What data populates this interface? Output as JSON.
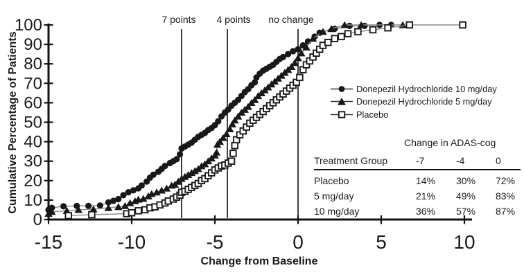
{
  "page": {
    "background": "#ffffff"
  },
  "colors": {
    "ink": "#181818",
    "axis": "#111111",
    "series_line": "#8c8c8c",
    "ref_line": "#2b2b2b",
    "marker_fill": "#181818",
    "open_marker_fill": "#ffffff"
  },
  "chart_data": {
    "type": "line",
    "title": "",
    "xlabel": "Change from Baseline",
    "ylabel": "Cumulative Percentage of Patients",
    "xlim": [
      -15,
      10
    ],
    "ylim": [
      0,
      100
    ],
    "x_ticks": [
      -15,
      -10,
      -5,
      0,
      5,
      10
    ],
    "y_ticks": [
      0,
      10,
      20,
      30,
      40,
      50,
      60,
      70,
      80,
      90,
      100
    ],
    "grid": false,
    "legend_position": "right-middle",
    "ref_lines": [
      {
        "label": "7 points",
        "x": -7
      },
      {
        "label": "4 points",
        "x": -4.25
      },
      {
        "label": "no change",
        "x": 0
      }
    ],
    "series": [
      {
        "name": "Donepezil Hydrochloride 10 mg/day",
        "marker": "filled-circle",
        "points": [
          [
            -15,
            5
          ],
          [
            -14.8,
            6
          ],
          [
            -14.1,
            6.8
          ],
          [
            -13.3,
            7
          ],
          [
            -12.6,
            7
          ],
          [
            -11.9,
            7.2
          ],
          [
            -11.4,
            8.8
          ],
          [
            -11.1,
            9.6
          ],
          [
            -10.8,
            10.5
          ],
          [
            -10.5,
            12.5
          ],
          [
            -10.2,
            14
          ],
          [
            -9.9,
            15
          ],
          [
            -9.6,
            16
          ],
          [
            -9.4,
            17.5
          ],
          [
            -9.1,
            19.5
          ],
          [
            -8.9,
            21.5
          ],
          [
            -8.7,
            23
          ],
          [
            -8.4,
            24.5
          ],
          [
            -8.2,
            26
          ],
          [
            -8,
            27.5
          ],
          [
            -7.7,
            29
          ],
          [
            -7.5,
            30
          ],
          [
            -7.3,
            31
          ],
          [
            -7.1,
            33.5
          ],
          [
            -7,
            36.5
          ],
          [
            -6.8,
            37.5
          ],
          [
            -6.6,
            38.5
          ],
          [
            -6.4,
            39.5
          ],
          [
            -6.2,
            41
          ],
          [
            -6,
            42.5
          ],
          [
            -5.8,
            43.5
          ],
          [
            -5.6,
            44.5
          ],
          [
            -5.4,
            46
          ],
          [
            -5.2,
            47
          ],
          [
            -5,
            48.5
          ],
          [
            -4.8,
            50.5
          ],
          [
            -4.6,
            53
          ],
          [
            -4.4,
            55
          ],
          [
            -4.2,
            56.5
          ],
          [
            -4,
            58.5
          ],
          [
            -3.8,
            60
          ],
          [
            -3.6,
            61.5
          ],
          [
            -3.4,
            63.5
          ],
          [
            -3.2,
            65.5
          ],
          [
            -3,
            67
          ],
          [
            -2.8,
            69
          ],
          [
            -2.6,
            70.5
          ],
          [
            -2.5,
            73
          ],
          [
            -2.3,
            75
          ],
          [
            -2.1,
            76.5
          ],
          [
            -1.9,
            77.5
          ],
          [
            -1.7,
            78.5
          ],
          [
            -1.5,
            79.5
          ],
          [
            -1.3,
            81
          ],
          [
            -1.1,
            82.5
          ],
          [
            -0.9,
            83.5
          ],
          [
            -0.6,
            85
          ],
          [
            -0.3,
            86.5
          ],
          [
            0,
            87.5
          ],
          [
            0.3,
            89.5
          ],
          [
            0.6,
            91.5
          ],
          [
            1,
            94
          ],
          [
            1.3,
            96
          ],
          [
            2.2,
            98
          ],
          [
            3.1,
            99.5
          ],
          [
            4,
            99.5
          ],
          [
            4.9,
            100
          ],
          [
            5.6,
            100
          ]
        ]
      },
      {
        "name": "Donepezil Hydrochloride 5 mg/day",
        "marker": "filled-triangle",
        "points": [
          [
            -15,
            3
          ],
          [
            -14.8,
            4
          ],
          [
            -13.9,
            4.5
          ],
          [
            -13.2,
            5
          ],
          [
            -12.3,
            5.3
          ],
          [
            -11.4,
            6
          ],
          [
            -10.8,
            6.5
          ],
          [
            -10.4,
            7
          ],
          [
            -10.1,
            8.5
          ],
          [
            -9.8,
            9.5
          ],
          [
            -9.6,
            10.3
          ],
          [
            -9.3,
            10.7
          ],
          [
            -9,
            12
          ],
          [
            -8.8,
            13.2
          ],
          [
            -8.5,
            14
          ],
          [
            -8.2,
            15
          ],
          [
            -7.9,
            16
          ],
          [
            -7.6,
            17.5
          ],
          [
            -7.4,
            18
          ],
          [
            -7.2,
            19.5
          ],
          [
            -7,
            21
          ],
          [
            -6.8,
            22
          ],
          [
            -6.6,
            23
          ],
          [
            -6.4,
            24
          ],
          [
            -6.2,
            25
          ],
          [
            -6,
            26
          ],
          [
            -5.8,
            27.5
          ],
          [
            -5.6,
            28.5
          ],
          [
            -5.4,
            30
          ],
          [
            -5.2,
            31.5
          ],
          [
            -5,
            33
          ],
          [
            -4.9,
            34.5
          ],
          [
            -4.85,
            38.5
          ],
          [
            -4.7,
            40
          ],
          [
            -4.5,
            42
          ],
          [
            -4.3,
            44
          ],
          [
            -4.1,
            46.5
          ],
          [
            -3.95,
            49
          ],
          [
            -3.8,
            51
          ],
          [
            -3.6,
            53
          ],
          [
            -3.4,
            55
          ],
          [
            -3.2,
            56.5
          ],
          [
            -3,
            58
          ],
          [
            -2.8,
            60
          ],
          [
            -2.6,
            61.5
          ],
          [
            -2.4,
            63.5
          ],
          [
            -2.2,
            65
          ],
          [
            -2,
            66.5
          ],
          [
            -1.8,
            68
          ],
          [
            -1.6,
            69.5
          ],
          [
            -1.4,
            71
          ],
          [
            -1.2,
            72.5
          ],
          [
            -1,
            74
          ],
          [
            -0.8,
            75.5
          ],
          [
            -0.6,
            77
          ],
          [
            -0.4,
            78.5
          ],
          [
            -0.2,
            80.5
          ],
          [
            0,
            83
          ],
          [
            0.2,
            85.5
          ],
          [
            0.5,
            88.5
          ],
          [
            0.9,
            93
          ],
          [
            1.5,
            96.5
          ],
          [
            2,
            98
          ],
          [
            2.8,
            100
          ],
          [
            3.8,
            100
          ],
          [
            6.3,
            100
          ]
        ]
      },
      {
        "name": "Placebo",
        "marker": "open-square",
        "points": [
          [
            -13.8,
            2
          ],
          [
            -12.4,
            2.5
          ],
          [
            -10.3,
            3
          ],
          [
            -10,
            3.5
          ],
          [
            -9.6,
            4.5
          ],
          [
            -9.2,
            5
          ],
          [
            -8.9,
            6
          ],
          [
            -8.6,
            6.5
          ],
          [
            -8.3,
            7.5
          ],
          [
            -8,
            8.5
          ],
          [
            -7.8,
            9.5
          ],
          [
            -7.5,
            10.5
          ],
          [
            -7.3,
            11.5
          ],
          [
            -7.1,
            12.5
          ],
          [
            -7,
            14
          ],
          [
            -6.8,
            14.5
          ],
          [
            -6.6,
            15.5
          ],
          [
            -6.4,
            16.5
          ],
          [
            -6.2,
            17.5
          ],
          [
            -6,
            18.5
          ],
          [
            -5.8,
            20
          ],
          [
            -5.6,
            21
          ],
          [
            -5.4,
            22.5
          ],
          [
            -5.2,
            24
          ],
          [
            -5,
            25.5
          ],
          [
            -4.8,
            26.5
          ],
          [
            -4.6,
            27.5
          ],
          [
            -4.4,
            28
          ],
          [
            -4.2,
            29
          ],
          [
            -4,
            30
          ],
          [
            -3.9,
            34
          ],
          [
            -3.8,
            38
          ],
          [
            -3.7,
            41
          ],
          [
            -3.5,
            43.5
          ],
          [
            -3.3,
            45.5
          ],
          [
            -3.1,
            47.5
          ],
          [
            -2.9,
            49.5
          ],
          [
            -2.7,
            51
          ],
          [
            -2.5,
            52.5
          ],
          [
            -2.3,
            54
          ],
          [
            -2.1,
            55.5
          ],
          [
            -1.9,
            57
          ],
          [
            -1.7,
            58.5
          ],
          [
            -1.5,
            60
          ],
          [
            -1.3,
            61.5
          ],
          [
            -1.1,
            63
          ],
          [
            -0.9,
            64.5
          ],
          [
            -0.7,
            66
          ],
          [
            -0.5,
            67.5
          ],
          [
            -0.3,
            69
          ],
          [
            -0.1,
            70.5
          ],
          [
            0.1,
            73
          ],
          [
            0.3,
            77
          ],
          [
            0.5,
            79.5
          ],
          [
            0.7,
            81.5
          ],
          [
            0.9,
            83.5
          ],
          [
            1.1,
            85.5
          ],
          [
            1.3,
            87.5
          ],
          [
            1.5,
            89.5
          ],
          [
            1.8,
            91
          ],
          [
            2.2,
            93
          ],
          [
            2.6,
            94
          ],
          [
            3,
            95.5
          ],
          [
            3.6,
            96.5
          ],
          [
            4.5,
            97.5
          ],
          [
            5.4,
            98.5
          ],
          [
            6.7,
            100
          ],
          [
            9.9,
            100
          ]
        ]
      }
    ]
  },
  "inset_table": {
    "title": "Change in ADAS-cog",
    "header": [
      "Treatment Group",
      "-7",
      "-4",
      "0"
    ],
    "rows": [
      [
        "Placebo",
        "14%",
        "30%",
        "72%"
      ],
      [
        "5 mg/day",
        "21%",
        "49%",
        "83%"
      ],
      [
        "10 mg/day",
        "36%",
        "57%",
        "87%"
      ]
    ]
  }
}
